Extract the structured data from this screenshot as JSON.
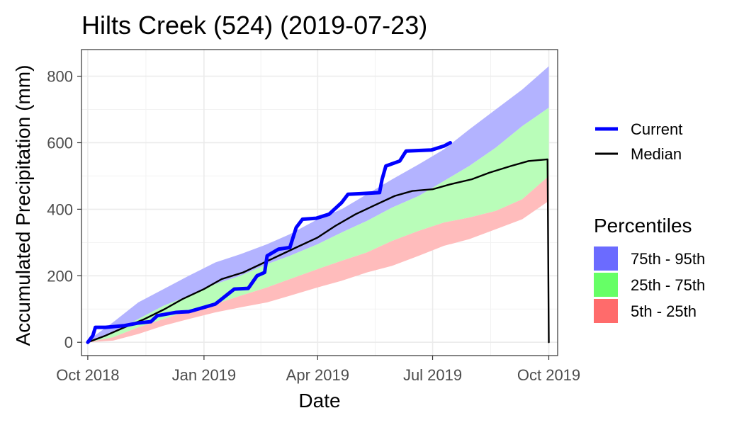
{
  "chart_data": {
    "type": "line",
    "title": "Hilts Creek (524) (2019-07-23)",
    "xlabel": "Date",
    "ylabel": "Accumulated Precipitation (mm)",
    "x_range": [
      "2018-09-26",
      "2019-10-08"
    ],
    "ylim": [
      -40,
      880
    ],
    "x_ticks": [
      {
        "date": "2018-10-01",
        "label": "Oct 2018"
      },
      {
        "date": "2019-01-01",
        "label": "Jan 2019"
      },
      {
        "date": "2019-04-01",
        "label": "Apr 2019"
      },
      {
        "date": "2019-07-01",
        "label": "Jul 2019"
      },
      {
        "date": "2019-10-01",
        "label": "Oct 2019"
      }
    ],
    "y_ticks": [
      0,
      200,
      400,
      600,
      800
    ],
    "grid": true,
    "legend_placement": "right",
    "legend": {
      "lines": [
        {
          "label": "Current",
          "color": "#0000ff"
        },
        {
          "label": "Median",
          "color": "#000000"
        }
      ],
      "percentiles_title": "Percentiles",
      "bands": [
        {
          "label": "75th - 95th",
          "color": "#6b6bff"
        },
        {
          "label": "25th - 75th",
          "color": "#66ff66"
        },
        {
          "label": "5th - 25th",
          "color": "#ff6b6b"
        }
      ]
    },
    "bands": [
      {
        "name": "75th - 95th",
        "fill": "#b3b3ff",
        "dates": [
          "2018-10-01",
          "2018-10-21",
          "2018-11-10",
          "2018-11-30",
          "2018-12-20",
          "2019-01-10",
          "2019-01-30",
          "2019-02-20",
          "2019-03-10",
          "2019-04-01",
          "2019-04-20",
          "2019-05-10",
          "2019-05-30",
          "2019-06-20",
          "2019-07-10",
          "2019-07-30",
          "2019-08-20",
          "2019-09-10",
          "2019-10-01"
        ],
        "lower": [
          0,
          30,
          70,
          110,
          140,
          175,
          200,
          235,
          260,
          295,
          330,
          365,
          405,
          440,
          485,
          530,
          585,
          650,
          705
        ],
        "upper": [
          5,
          60,
          120,
          160,
          200,
          240,
          265,
          295,
          325,
          370,
          400,
          445,
          490,
          535,
          580,
          640,
          700,
          760,
          830
        ]
      },
      {
        "name": "25th - 75th",
        "fill": "#b9fdb9",
        "dates": [
          "2018-10-01",
          "2018-10-21",
          "2018-11-10",
          "2018-11-30",
          "2018-12-20",
          "2019-01-10",
          "2019-01-30",
          "2019-02-20",
          "2019-03-10",
          "2019-04-01",
          "2019-04-20",
          "2019-05-10",
          "2019-05-30",
          "2019-06-20",
          "2019-07-10",
          "2019-07-30",
          "2019-08-20",
          "2019-09-10",
          "2019-10-01"
        ],
        "lower": [
          0,
          15,
          45,
          70,
          95,
          115,
          140,
          165,
          190,
          220,
          245,
          270,
          305,
          335,
          360,
          375,
          395,
          430,
          500
        ],
        "upper": [
          0,
          30,
          70,
          110,
          140,
          175,
          200,
          235,
          260,
          295,
          330,
          365,
          405,
          440,
          485,
          530,
          585,
          650,
          705
        ]
      },
      {
        "name": "5th - 25th",
        "fill": "#ffbcbc",
        "dates": [
          "2018-10-01",
          "2018-10-21",
          "2018-11-10",
          "2018-11-30",
          "2018-12-20",
          "2019-01-10",
          "2019-01-30",
          "2019-02-20",
          "2019-03-10",
          "2019-04-01",
          "2019-04-20",
          "2019-05-10",
          "2019-05-30",
          "2019-06-20",
          "2019-07-10",
          "2019-07-30",
          "2019-08-20",
          "2019-09-10",
          "2019-10-01"
        ],
        "lower": [
          0,
          5,
          25,
          50,
          70,
          90,
          105,
          120,
          140,
          165,
          185,
          210,
          230,
          260,
          290,
          310,
          340,
          370,
          425
        ],
        "upper": [
          0,
          15,
          45,
          70,
          95,
          115,
          140,
          165,
          190,
          220,
          245,
          270,
          305,
          335,
          360,
          375,
          395,
          430,
          500
        ]
      }
    ],
    "series": [
      {
        "name": "Median",
        "color": "#000000",
        "dates": [
          "2018-10-01",
          "2018-10-15",
          "2018-10-30",
          "2018-11-15",
          "2018-12-01",
          "2018-12-15",
          "2019-01-01",
          "2019-01-15",
          "2019-02-01",
          "2019-02-15",
          "2019-03-01",
          "2019-03-15",
          "2019-04-01",
          "2019-04-15",
          "2019-05-01",
          "2019-05-15",
          "2019-06-01",
          "2019-06-15",
          "2019-07-01",
          "2019-07-15",
          "2019-08-01",
          "2019-08-15",
          "2019-09-01",
          "2019-09-15",
          "2019-09-30",
          "2019-10-01"
        ],
        "values": [
          0,
          20,
          45,
          70,
          100,
          130,
          160,
          190,
          210,
          235,
          260,
          285,
          315,
          350,
          385,
          410,
          440,
          455,
          460,
          475,
          490,
          510,
          530,
          545,
          550,
          0
        ]
      },
      {
        "name": "Current",
        "color": "#0000ff",
        "dates": [
          "2018-10-01",
          "2018-10-05",
          "2018-10-07",
          "2018-10-15",
          "2018-10-30",
          "2018-11-10",
          "2018-11-20",
          "2018-11-25",
          "2018-12-10",
          "2018-12-20",
          "2019-01-01",
          "2019-01-10",
          "2019-01-15",
          "2019-01-20",
          "2019-01-25",
          "2019-02-05",
          "2019-02-12",
          "2019-02-18",
          "2019-02-20",
          "2019-03-01",
          "2019-03-10",
          "2019-03-15",
          "2019-03-20",
          "2019-03-31",
          "2019-04-10",
          "2019-04-20",
          "2019-04-25",
          "2019-05-05",
          "2019-05-20",
          "2019-05-22",
          "2019-05-25",
          "2019-06-05",
          "2019-06-10",
          "2019-06-30",
          "2019-07-10",
          "2019-07-15"
        ],
        "values": [
          0,
          20,
          45,
          45,
          50,
          58,
          62,
          80,
          90,
          92,
          105,
          115,
          130,
          145,
          160,
          162,
          200,
          210,
          260,
          280,
          285,
          345,
          370,
          373,
          385,
          420,
          445,
          447,
          450,
          490,
          530,
          545,
          575,
          578,
          590,
          600
        ]
      }
    ]
  }
}
